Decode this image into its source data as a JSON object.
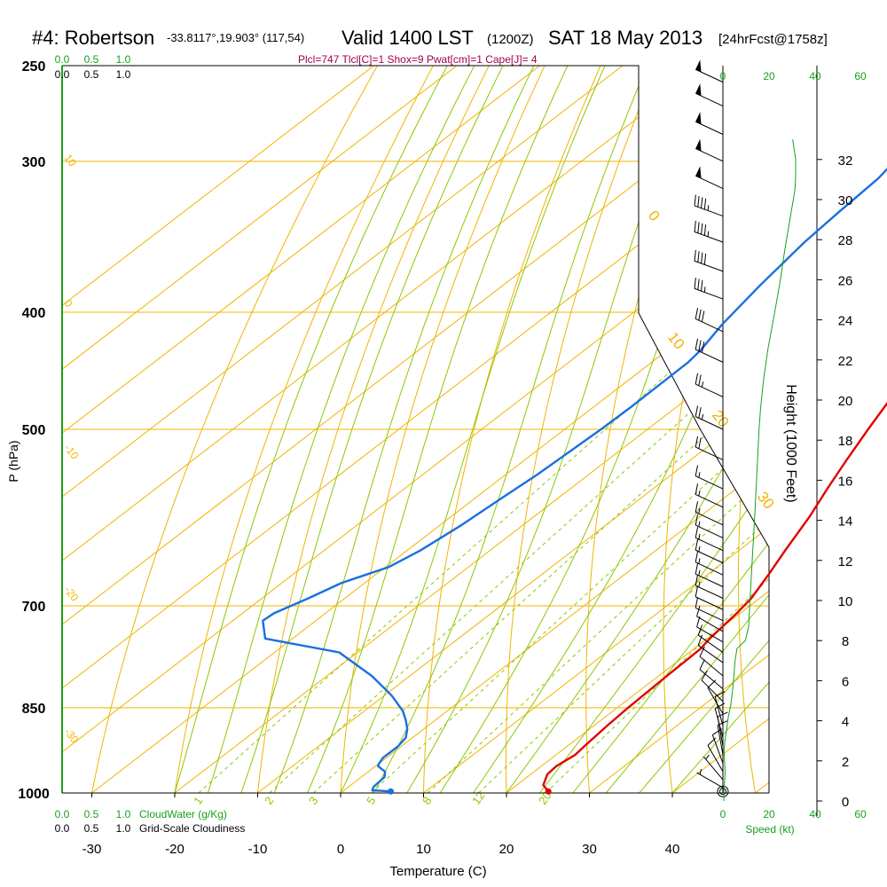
{
  "header": {
    "station": "#4: Robertson",
    "coords": "-33.8117°,19.903° (117,54)",
    "valid": "Valid 1400 LST",
    "utc": "(1200Z)",
    "date": "SAT 18 May 2013",
    "forecast": "[24hrFcst@1758z]",
    "indices": "Plcl=747 Tlcl[C]=1 Shox=9 Pwat[cm]=1 Cape[J]= 4"
  },
  "colors": {
    "isotherm": "#f0b400",
    "dry_adiabat": "#f0b400",
    "moist_adiabat": "#8cc800",
    "mixing_ratio": "#8cc800",
    "temperature": "#e00000",
    "dewpoint": "#1a6fe0",
    "axis_green": "#1aa01a",
    "indices": "#a0004a"
  },
  "chart_data": {
    "type": "line",
    "title": "#4: Robertson -33.8117°,19.903° (117,54) Valid 1400 LST (1200Z) SAT 18 May 2013 [24hrFcst@1758z]",
    "xlabel": "Temperature (C)",
    "ylabel": "P (hPa)",
    "x_ticks": [
      "-30",
      "-20",
      "-10",
      "0",
      "10",
      "20",
      "30",
      "40"
    ],
    "y_ticks": [
      "250",
      "300",
      "400",
      "500",
      "700",
      "850",
      "1000"
    ],
    "y_scale": "log",
    "xlim": [
      -34,
      47
    ],
    "ylim": [
      1000,
      250
    ],
    "height_axis": {
      "label": "Height (1000 Feet)",
      "ticks": [
        "0",
        "2",
        "4",
        "6",
        "8",
        "10",
        "12",
        "14",
        "16",
        "18",
        "20",
        "22",
        "24",
        "26",
        "28",
        "30",
        "32"
      ]
    },
    "cloud_scale_top": {
      "cloud_water": [
        "0.0",
        "0.5",
        "1.0"
      ],
      "cloudiness": [
        "0.0",
        "0.5",
        "1.0"
      ]
    },
    "cloud_scale_bottom": {
      "cloud_water": [
        "0.0",
        "0.5",
        "1.0"
      ],
      "cloud_water_label": "CloudWater (g/Kg)",
      "cloudiness": [
        "0.0",
        "0.5",
        "1.0"
      ],
      "cloudiness_label": "Grid-Scale Cloudiness"
    },
    "speed_axis": {
      "label": "Speed (kt)",
      "ticks": [
        "0",
        "20",
        "40",
        "60"
      ]
    },
    "isotherm_labels": [
      "10",
      "0",
      "-10",
      "-20",
      "-30",
      "0",
      "10",
      "20",
      "30"
    ],
    "mixing_ratio_labels": [
      "1",
      "2",
      "3",
      "5",
      "8",
      "12",
      "20"
    ],
    "series": [
      {
        "name": "Temperature",
        "points": [
          [
            24.8,
            997
          ],
          [
            23.2,
            985
          ],
          [
            22.0,
            965
          ],
          [
            21.8,
            950
          ],
          [
            22.3,
            930
          ],
          [
            22.0,
            910
          ],
          [
            21.6,
            880
          ],
          [
            21.3,
            850
          ],
          [
            21.0,
            800
          ],
          [
            20.8,
            760
          ],
          [
            20.3,
            745
          ],
          [
            19.6,
            710
          ],
          [
            19.0,
            690
          ],
          [
            17.4,
            660
          ],
          [
            15.6,
            630
          ],
          [
            13.2,
            590
          ],
          [
            11.0,
            560
          ],
          [
            8.8,
            530
          ],
          [
            6.6,
            500
          ],
          [
            3.6,
            460
          ],
          [
            1.0,
            430
          ],
          [
            -2.0,
            400
          ],
          [
            -5.6,
            370
          ],
          [
            -9.6,
            340
          ],
          [
            -14.2,
            310
          ],
          [
            -17.4,
            290
          ],
          [
            -18.7,
            279
          ],
          [
            -19.7,
            271
          ],
          [
            -20.3,
            266
          ],
          [
            -20.6,
            263
          ],
          [
            -20.9,
            261
          ]
        ]
      },
      {
        "name": "Dewpoint",
        "points": [
          [
            5.8,
            997
          ],
          [
            3.4,
            995
          ],
          [
            3.0,
            988
          ],
          [
            2.8,
            970
          ],
          [
            2.0,
            960
          ],
          [
            0.3,
            950
          ],
          [
            0.0,
            945
          ],
          [
            -0.4,
            935
          ],
          [
            -0.4,
            915
          ],
          [
            -0.8,
            900
          ],
          [
            -2.0,
            885
          ],
          [
            -3.6,
            870
          ],
          [
            -5.4,
            855
          ],
          [
            -9.2,
            830
          ],
          [
            -14.6,
            800
          ],
          [
            -22.2,
            765
          ],
          [
            -33.3,
            745
          ],
          [
            -36.4,
            720
          ],
          [
            -36.2,
            710
          ],
          [
            -34.4,
            690
          ],
          [
            -32.8,
            670
          ],
          [
            -31.2,
            660
          ],
          [
            -29.6,
            650
          ],
          [
            -28.4,
            630
          ],
          [
            -27.4,
            600
          ],
          [
            -26.8,
            570
          ],
          [
            -26.2,
            545
          ],
          [
            -25.6,
            500
          ],
          [
            -25.5,
            480
          ],
          [
            -25.6,
            440
          ],
          [
            -26.0,
            430
          ],
          [
            -27.4,
            410
          ],
          [
            -29.0,
            380
          ],
          [
            -30.4,
            350
          ],
          [
            -31.0,
            330
          ],
          [
            -31.5,
            310
          ],
          [
            -33.0,
            290
          ],
          [
            -35.2,
            270
          ],
          [
            -36.4,
            264
          ],
          [
            -37.6,
            257
          ]
        ]
      },
      {
        "name": "Height",
        "points": [
          [
            0.4,
            0
          ],
          [
            0.4,
            0.5
          ],
          [
            0.8,
            1.0
          ],
          [
            1.0,
            1.5
          ],
          [
            0.7,
            2.0
          ],
          [
            0.5,
            2.5
          ],
          [
            0.9,
            3.0
          ],
          [
            1.6,
            3.5
          ],
          [
            2.4,
            4.2
          ],
          [
            3.5,
            4.8
          ],
          [
            4.6,
            5.8
          ],
          [
            5.4,
            7.0
          ],
          [
            6.3,
            7.6
          ],
          [
            10.0,
            8.0
          ],
          [
            11.5,
            8.7
          ],
          [
            11.6,
            9.0
          ],
          [
            12.8,
            11.5
          ],
          [
            14.3,
            14.5
          ],
          [
            15.2,
            16.5
          ],
          [
            16.1,
            18.5
          ],
          [
            16.7,
            19.5
          ],
          [
            18.1,
            21.0
          ],
          [
            20.0,
            22.5
          ],
          [
            23.3,
            24.5
          ],
          [
            25.6,
            26.0
          ],
          [
            27.6,
            27.5
          ],
          [
            30.6,
            29.5
          ],
          [
            31.4,
            30.0
          ],
          [
            32.1,
            30.5
          ],
          [
            32.4,
            31.2
          ],
          [
            32.4,
            32.0
          ],
          [
            31.1,
            33.0
          ]
        ]
      }
    ],
    "wind_barbs": [
      {
        "p": 997,
        "speed_kt": 0,
        "dir": 0
      },
      {
        "p": 990,
        "speed_kt": 5,
        "dir": 300
      },
      {
        "p": 975,
        "speed_kt": 5,
        "dir": 320
      },
      {
        "p": 960,
        "speed_kt": 10,
        "dir": 330
      },
      {
        "p": 945,
        "speed_kt": 10,
        "dir": 340
      },
      {
        "p": 930,
        "speed_kt": 10,
        "dir": 350
      },
      {
        "p": 915,
        "speed_kt": 10,
        "dir": 350
      },
      {
        "p": 900,
        "speed_kt": 10,
        "dir": 345
      },
      {
        "p": 880,
        "speed_kt": 10,
        "dir": 345
      },
      {
        "p": 860,
        "speed_kt": 10,
        "dir": 330
      },
      {
        "p": 840,
        "speed_kt": 10,
        "dir": 315
      },
      {
        "p": 820,
        "speed_kt": 10,
        "dir": 310
      },
      {
        "p": 800,
        "speed_kt": 10,
        "dir": 310
      },
      {
        "p": 780,
        "speed_kt": 10,
        "dir": 305
      },
      {
        "p": 765,
        "speed_kt": 10,
        "dir": 305
      },
      {
        "p": 750,
        "speed_kt": 10,
        "dir": 300
      },
      {
        "p": 735,
        "speed_kt": 10,
        "dir": 300
      },
      {
        "p": 720,
        "speed_kt": 10,
        "dir": 295
      },
      {
        "p": 705,
        "speed_kt": 10,
        "dir": 295
      },
      {
        "p": 690,
        "speed_kt": 15,
        "dir": 295
      },
      {
        "p": 675,
        "speed_kt": 15,
        "dir": 295
      },
      {
        "p": 660,
        "speed_kt": 15,
        "dir": 295
      },
      {
        "p": 645,
        "speed_kt": 15,
        "dir": 295
      },
      {
        "p": 630,
        "speed_kt": 15,
        "dir": 295
      },
      {
        "p": 615,
        "speed_kt": 15,
        "dir": 295
      },
      {
        "p": 600,
        "speed_kt": 15,
        "dir": 295
      },
      {
        "p": 580,
        "speed_kt": 15,
        "dir": 295
      },
      {
        "p": 560,
        "speed_kt": 15,
        "dir": 295
      },
      {
        "p": 530,
        "speed_kt": 20,
        "dir": 295
      },
      {
        "p": 500,
        "speed_kt": 25,
        "dir": 295
      },
      {
        "p": 470,
        "speed_kt": 25,
        "dir": 295
      },
      {
        "p": 440,
        "speed_kt": 30,
        "dir": 295
      },
      {
        "p": 415,
        "speed_kt": 30,
        "dir": 295
      },
      {
        "p": 390,
        "speed_kt": 35,
        "dir": 290
      },
      {
        "p": 370,
        "speed_kt": 40,
        "dir": 290
      },
      {
        "p": 350,
        "speed_kt": 45,
        "dir": 290
      },
      {
        "p": 333,
        "speed_kt": 45,
        "dir": 290
      },
      {
        "p": 316,
        "speed_kt": 50,
        "dir": 295
      },
      {
        "p": 300,
        "speed_kt": 50,
        "dir": 295
      },
      {
        "p": 285,
        "speed_kt": 50,
        "dir": 295
      },
      {
        "p": 270,
        "speed_kt": 50,
        "dir": 295
      },
      {
        "p": 258,
        "speed_kt": 50,
        "dir": 295
      }
    ]
  }
}
